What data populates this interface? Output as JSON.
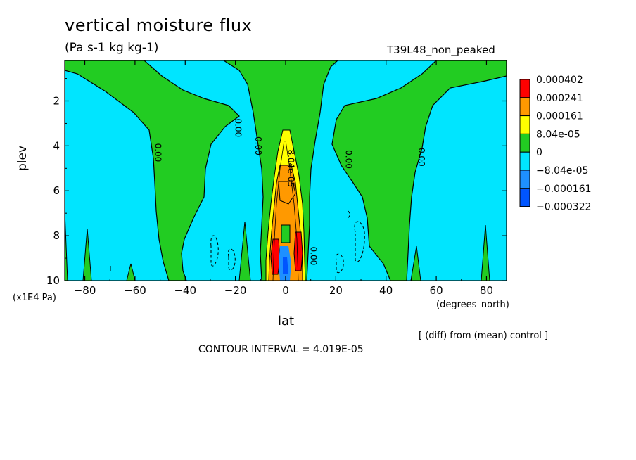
{
  "chart_data": {
    "type": "contour",
    "title": "vertical moisture flux",
    "units": "(Pa s-1 kg kg-1)",
    "run": "T39L48_non_peaked",
    "xlabel": "lat",
    "xunit": "(degrees_north)",
    "ylabel": "plev",
    "yunit": "(x1E4 Pa)",
    "xlim": [
      -88,
      88
    ],
    "ylim": [
      0.2,
      10
    ],
    "y_inverted": true,
    "xticks": [
      -80,
      -60,
      -40,
      -20,
      0,
      20,
      40,
      60,
      80
    ],
    "yticks": [
      2,
      4,
      6,
      8,
      10
    ],
    "contour_interval": "CONTOUR INTERVAL = 4.019E-05",
    "note": "[ (diff) from (mean) control ]",
    "contour_labels": [
      {
        "text": "0.00",
        "x": -52,
        "y": 4.3
      },
      {
        "text": "0.00",
        "x": -20,
        "y": 3.2
      },
      {
        "text": "0.00",
        "x": -12,
        "y": 4.0
      },
      {
        "text": "0.00",
        "x": 24,
        "y": 4.6
      },
      {
        "text": "0.00",
        "x": 53,
        "y": 4.5
      },
      {
        "text": "8.04e-05",
        "x": 1,
        "y": 5.0
      },
      {
        "text": "0.00",
        "x": 10,
        "y": 8.9
      }
    ],
    "legend": {
      "levels": [
        "0.000402",
        "0.000241",
        "0.000161",
        "8.04e-05",
        "0",
        "−8.04e-05",
        "−0.000161",
        "−0.000322"
      ],
      "colors": [
        "#ff0000",
        "#ff9900",
        "#ffff00",
        "#22cc22",
        "#00e5ff",
        "#1e90ff",
        "#0055ff"
      ]
    }
  }
}
